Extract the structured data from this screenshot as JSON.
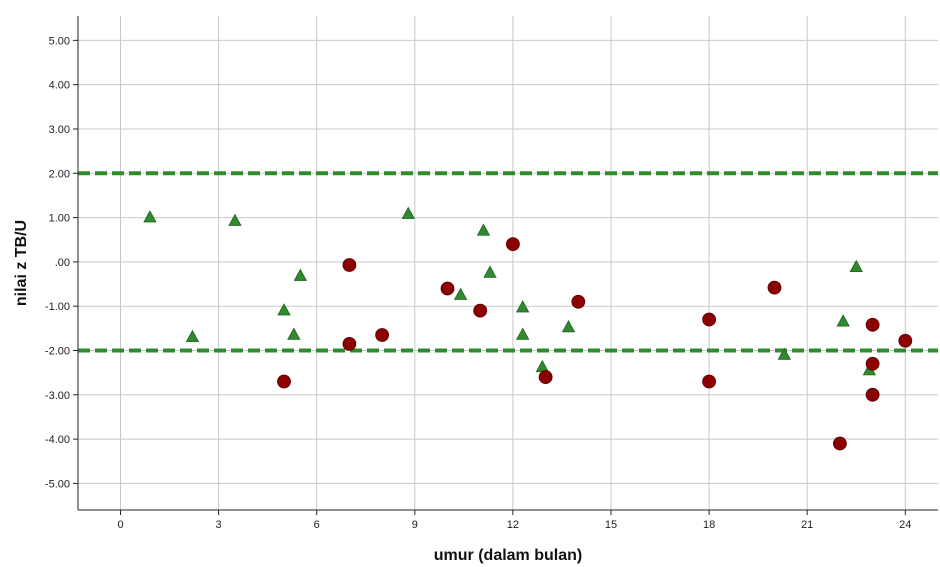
{
  "chart_data": {
    "type": "scatter",
    "title": "",
    "xlabel": "umur (dalam bulan)",
    "ylabel": "nilai z TB/U",
    "xlim": [
      -1.3,
      25
    ],
    "ylim": [
      -5.6,
      5.55
    ],
    "x_ticks": [
      {
        "value": 0,
        "label": "0"
      },
      {
        "value": 3,
        "label": "3"
      },
      {
        "value": 6,
        "label": "6"
      },
      {
        "value": 9,
        "label": "9"
      },
      {
        "value": 12,
        "label": "12"
      },
      {
        "value": 15,
        "label": "15"
      },
      {
        "value": 18,
        "label": "18"
      },
      {
        "value": 21,
        "label": "21"
      },
      {
        "value": 24,
        "label": "24"
      }
    ],
    "y_ticks": [
      {
        "value": 5,
        "label": "5.00"
      },
      {
        "value": 4,
        "label": "4.00"
      },
      {
        "value": 3,
        "label": "3.00"
      },
      {
        "value": 2,
        "label": "2.00"
      },
      {
        "value": 1,
        "label": "1.00"
      },
      {
        "value": 0,
        "label": ".00"
      },
      {
        "value": -1,
        "label": "-1.00"
      },
      {
        "value": -2,
        "label": "-2.00"
      },
      {
        "value": -3,
        "label": "-3.00"
      },
      {
        "value": -4,
        "label": "-4.00"
      },
      {
        "value": -5,
        "label": "-5.00"
      }
    ],
    "grid": true,
    "reference_lines": [
      {
        "y": 2,
        "color": "#2e8b2e",
        "style": "dashed"
      },
      {
        "y": -2,
        "color": "#2e8b2e",
        "style": "dashed"
      }
    ],
    "series": [
      {
        "marker": "triangle",
        "color": "#2e8b2e",
        "points": [
          {
            "x": 0.9,
            "y": 1.0
          },
          {
            "x": 2.2,
            "y": -1.7
          },
          {
            "x": 3.5,
            "y": 0.92
          },
          {
            "x": 5.0,
            "y": -1.1
          },
          {
            "x": 5.3,
            "y": -1.65
          },
          {
            "x": 5.5,
            "y": -0.32
          },
          {
            "x": 8.8,
            "y": 1.08
          },
          {
            "x": 10.4,
            "y": -0.75
          },
          {
            "x": 11.1,
            "y": 0.7
          },
          {
            "x": 11.3,
            "y": -0.25
          },
          {
            "x": 12.3,
            "y": -1.03
          },
          {
            "x": 12.3,
            "y": -1.65
          },
          {
            "x": 12.9,
            "y": -2.38
          },
          {
            "x": 13.7,
            "y": -1.48
          },
          {
            "x": 20.3,
            "y": -2.1
          },
          {
            "x": 22.1,
            "y": -1.35
          },
          {
            "x": 22.5,
            "y": -0.12
          },
          {
            "x": 22.9,
            "y": -2.45
          }
        ]
      },
      {
        "marker": "circle",
        "color": "#8b0000",
        "points": [
          {
            "x": 5.0,
            "y": -2.7
          },
          {
            "x": 7.0,
            "y": -0.07
          },
          {
            "x": 7.0,
            "y": -1.85
          },
          {
            "x": 8.0,
            "y": -1.65
          },
          {
            "x": 10.0,
            "y": -0.6
          },
          {
            "x": 11.0,
            "y": -1.1
          },
          {
            "x": 12.0,
            "y": 0.4
          },
          {
            "x": 13.0,
            "y": -2.6
          },
          {
            "x": 14.0,
            "y": -0.9
          },
          {
            "x": 18.0,
            "y": -1.3
          },
          {
            "x": 18.0,
            "y": -2.7
          },
          {
            "x": 20.0,
            "y": -0.58
          },
          {
            "x": 22.0,
            "y": -4.1
          },
          {
            "x": 23.0,
            "y": -1.42
          },
          {
            "x": 23.0,
            "y": -2.3
          },
          {
            "x": 23.0,
            "y": -3.0
          },
          {
            "x": 24.0,
            "y": -1.78
          }
        ]
      }
    ],
    "colors": {
      "grid": "#c8c8c8",
      "axis": "#222222",
      "background": "#ffffff"
    }
  }
}
